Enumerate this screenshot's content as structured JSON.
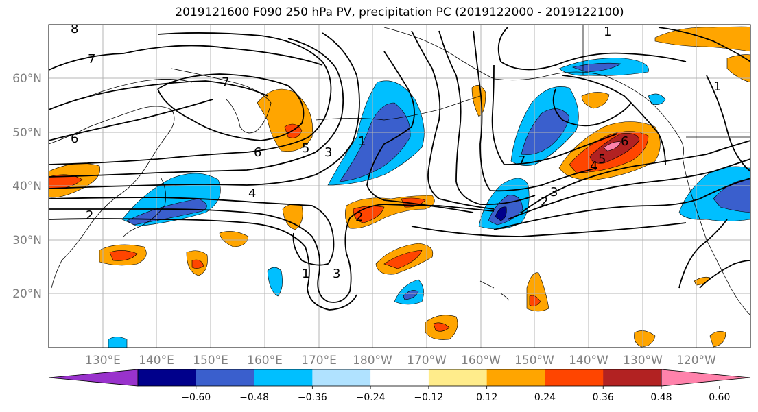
{
  "title": "2019121600 F090 250 hPa PV, precipitation PC (2019122000 - 2019122100)",
  "lat_labels": [
    "60°N",
    "50°N",
    "40°N",
    "30°N",
    "20°N"
  ],
  "lon_labels": [
    "130°E",
    "140°E",
    "150°E",
    "160°E",
    "170°E",
    "180°W",
    "170°W",
    "160°W",
    "150°W",
    "140°W",
    "130°W",
    "120°W"
  ],
  "colorbar": {
    "ticks": [
      "−0.60",
      "−0.48",
      "−0.36",
      "−0.24",
      "−0.12",
      "0.12",
      "0.24",
      "0.36",
      "0.48",
      "0.60"
    ],
    "colors": [
      "#9932cc",
      "#00008b",
      "#3a5fcd",
      "#00bfff",
      "#b0e2ff",
      "#ffffff",
      "#ffec8b",
      "#ffa500",
      "#ff4500",
      "#b22222",
      "#ff82ab"
    ]
  },
  "contour_labels": [
    "8",
    "7",
    "7",
    "6",
    "6",
    "5",
    "4",
    "3",
    "2",
    "2",
    "1",
    "1",
    "3",
    "1",
    "7",
    "6",
    "5",
    "4",
    "3",
    "2",
    "1"
  ]
}
